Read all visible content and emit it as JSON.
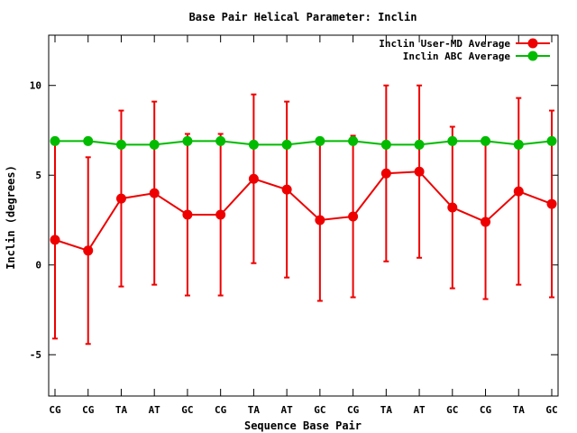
{
  "chart_data": {
    "type": "line",
    "title": "Base Pair Helical Parameter: Inclin",
    "xlabel": "Sequence Base Pair",
    "ylabel": "Inclin (degrees)",
    "ylim": [
      -7.3,
      12.8
    ],
    "yticks": [
      -5,
      0,
      5,
      10
    ],
    "grid": false,
    "legend_position": "top-right",
    "categories": [
      "CG",
      "CG",
      "TA",
      "AT",
      "GC",
      "CG",
      "TA",
      "AT",
      "GC",
      "CG",
      "TA",
      "AT",
      "GC",
      "CG",
      "TA",
      "GC"
    ],
    "series": [
      {
        "name": "Inclin User-MD Average",
        "color": "#ee0000",
        "values": [
          1.4,
          0.8,
          3.7,
          4.0,
          2.8,
          2.8,
          4.8,
          4.2,
          2.5,
          2.7,
          5.1,
          5.2,
          3.2,
          2.4,
          4.1,
          3.4
        ],
        "error_low": [
          -4.1,
          -4.4,
          -1.2,
          -1.1,
          -1.7,
          -1.7,
          0.1,
          -0.7,
          -2.0,
          -1.8,
          0.2,
          0.4,
          -1.3,
          -1.9,
          -1.1,
          -1.8
        ],
        "error_high": [
          6.9,
          6.0,
          8.6,
          9.1,
          7.3,
          7.3,
          9.5,
          9.1,
          6.9,
          7.2,
          10.0,
          10.0,
          7.7,
          6.9,
          9.3,
          8.6
        ]
      },
      {
        "name": "Inclin ABC Average",
        "color": "#00bb00",
        "values": [
          6.9,
          6.9,
          6.7,
          6.7,
          6.9,
          6.9,
          6.7,
          6.7,
          6.9,
          6.9,
          6.7,
          6.7,
          6.9,
          6.9,
          6.7,
          6.9
        ]
      }
    ]
  }
}
